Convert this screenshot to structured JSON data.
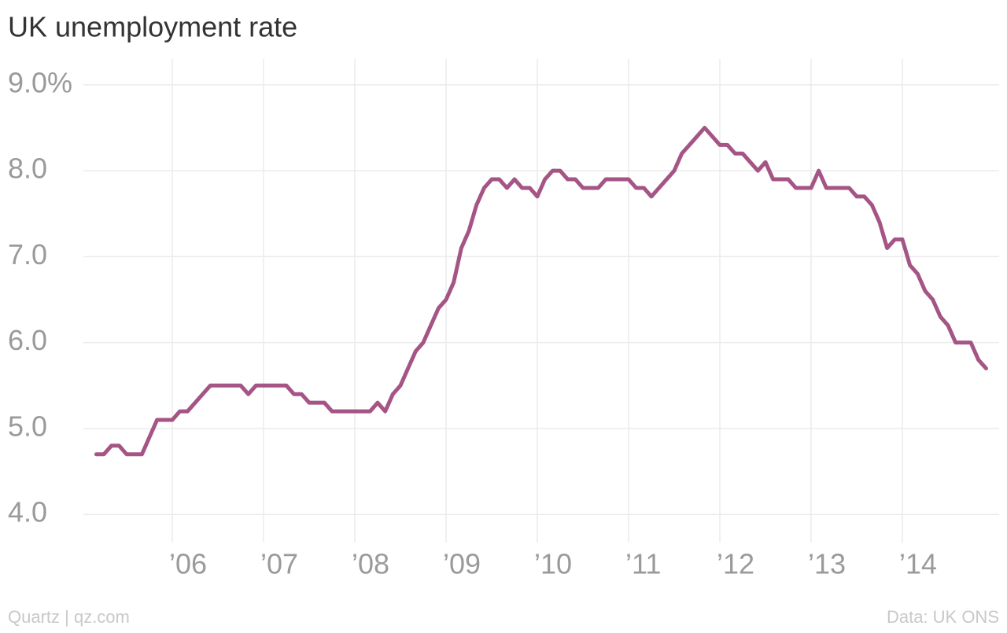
{
  "chart_data": {
    "type": "line",
    "title": "UK unemployment rate",
    "source": "Data: UK ONS",
    "credit": "Quartz | qz.com",
    "xlim": [
      2004.9,
      2015.05
    ],
    "xticks": [
      {
        "value": 2006,
        "label": "’06"
      },
      {
        "value": 2007,
        "label": "’07"
      },
      {
        "value": 2008,
        "label": "’08"
      },
      {
        "value": 2009,
        "label": "’09"
      },
      {
        "value": 2010,
        "label": "’10"
      },
      {
        "value": 2011,
        "label": "’11"
      },
      {
        "value": 2012,
        "label": "’12"
      },
      {
        "value": 2013,
        "label": "’13"
      },
      {
        "value": 2014,
        "label": "’14"
      }
    ],
    "ylim": [
      3.7,
      9.2
    ],
    "yticks": [
      {
        "value": 4,
        "label": "4.0"
      },
      {
        "value": 5,
        "label": "5.0"
      },
      {
        "value": 6,
        "label": "6.0"
      },
      {
        "value": 7,
        "label": "7.0"
      },
      {
        "value": 8,
        "label": "8.0"
      },
      {
        "value": 9,
        "label": "9.0%"
      }
    ],
    "grid": true,
    "x": [
      2005.167,
      2005.25,
      2005.333,
      2005.417,
      2005.5,
      2005.583,
      2005.667,
      2005.75,
      2005.833,
      2005.917,
      2006.0,
      2006.083,
      2006.167,
      2006.25,
      2006.333,
      2006.417,
      2006.5,
      2006.583,
      2006.667,
      2006.75,
      2006.833,
      2006.917,
      2007.0,
      2007.083,
      2007.167,
      2007.25,
      2007.333,
      2007.417,
      2007.5,
      2007.583,
      2007.667,
      2007.75,
      2007.833,
      2007.917,
      2008.0,
      2008.083,
      2008.167,
      2008.25,
      2008.333,
      2008.417,
      2008.5,
      2008.583,
      2008.667,
      2008.75,
      2008.833,
      2008.917,
      2009.0,
      2009.083,
      2009.167,
      2009.25,
      2009.333,
      2009.417,
      2009.5,
      2009.583,
      2009.667,
      2009.75,
      2009.833,
      2009.917,
      2010.0,
      2010.083,
      2010.167,
      2010.25,
      2010.333,
      2010.417,
      2010.5,
      2010.583,
      2010.667,
      2010.75,
      2010.833,
      2010.917,
      2011.0,
      2011.083,
      2011.167,
      2011.25,
      2011.333,
      2011.417,
      2011.5,
      2011.583,
      2011.667,
      2011.75,
      2011.833,
      2011.917,
      2012.0,
      2012.083,
      2012.167,
      2012.25,
      2012.333,
      2012.417,
      2012.5,
      2012.583,
      2012.667,
      2012.75,
      2012.833,
      2012.917,
      2013.0,
      2013.083,
      2013.167,
      2013.25,
      2013.333,
      2013.417,
      2013.5,
      2013.583,
      2013.667,
      2013.75,
      2013.833,
      2013.917,
      2014.0,
      2014.083,
      2014.167,
      2014.25,
      2014.333,
      2014.417,
      2014.5,
      2014.583,
      2014.667,
      2014.75,
      2014.833,
      2014.917
    ],
    "series": [
      {
        "color": "#a55585",
        "values": [
          4.7,
          4.7,
          4.8,
          4.8,
          4.7,
          4.7,
          4.7,
          4.9,
          5.1,
          5.1,
          5.1,
          5.2,
          5.2,
          5.3,
          5.4,
          5.5,
          5.5,
          5.5,
          5.5,
          5.5,
          5.4,
          5.5,
          5.5,
          5.5,
          5.5,
          5.5,
          5.4,
          5.4,
          5.3,
          5.3,
          5.3,
          5.2,
          5.2,
          5.2,
          5.2,
          5.2,
          5.2,
          5.3,
          5.2,
          5.4,
          5.5,
          5.7,
          5.9,
          6.0,
          6.2,
          6.4,
          6.5,
          6.7,
          7.1,
          7.3,
          7.6,
          7.8,
          7.9,
          7.9,
          7.8,
          7.9,
          7.8,
          7.8,
          7.7,
          7.9,
          8.0,
          8.0,
          7.9,
          7.9,
          7.8,
          7.8,
          7.8,
          7.9,
          7.9,
          7.9,
          7.9,
          7.8,
          7.8,
          7.7,
          7.8,
          7.9,
          8.0,
          8.2,
          8.3,
          8.4,
          8.5,
          8.4,
          8.3,
          8.3,
          8.2,
          8.2,
          8.1,
          8.0,
          8.1,
          7.9,
          7.9,
          7.9,
          7.8,
          7.8,
          7.8,
          8.0,
          7.8,
          7.8,
          7.8,
          7.8,
          7.7,
          7.7,
          7.6,
          7.4,
          7.1,
          7.2,
          7.2,
          6.9,
          6.8,
          6.6,
          6.5,
          6.3,
          6.2,
          6.0,
          6.0,
          6.0,
          5.8,
          5.7
        ]
      }
    ]
  }
}
